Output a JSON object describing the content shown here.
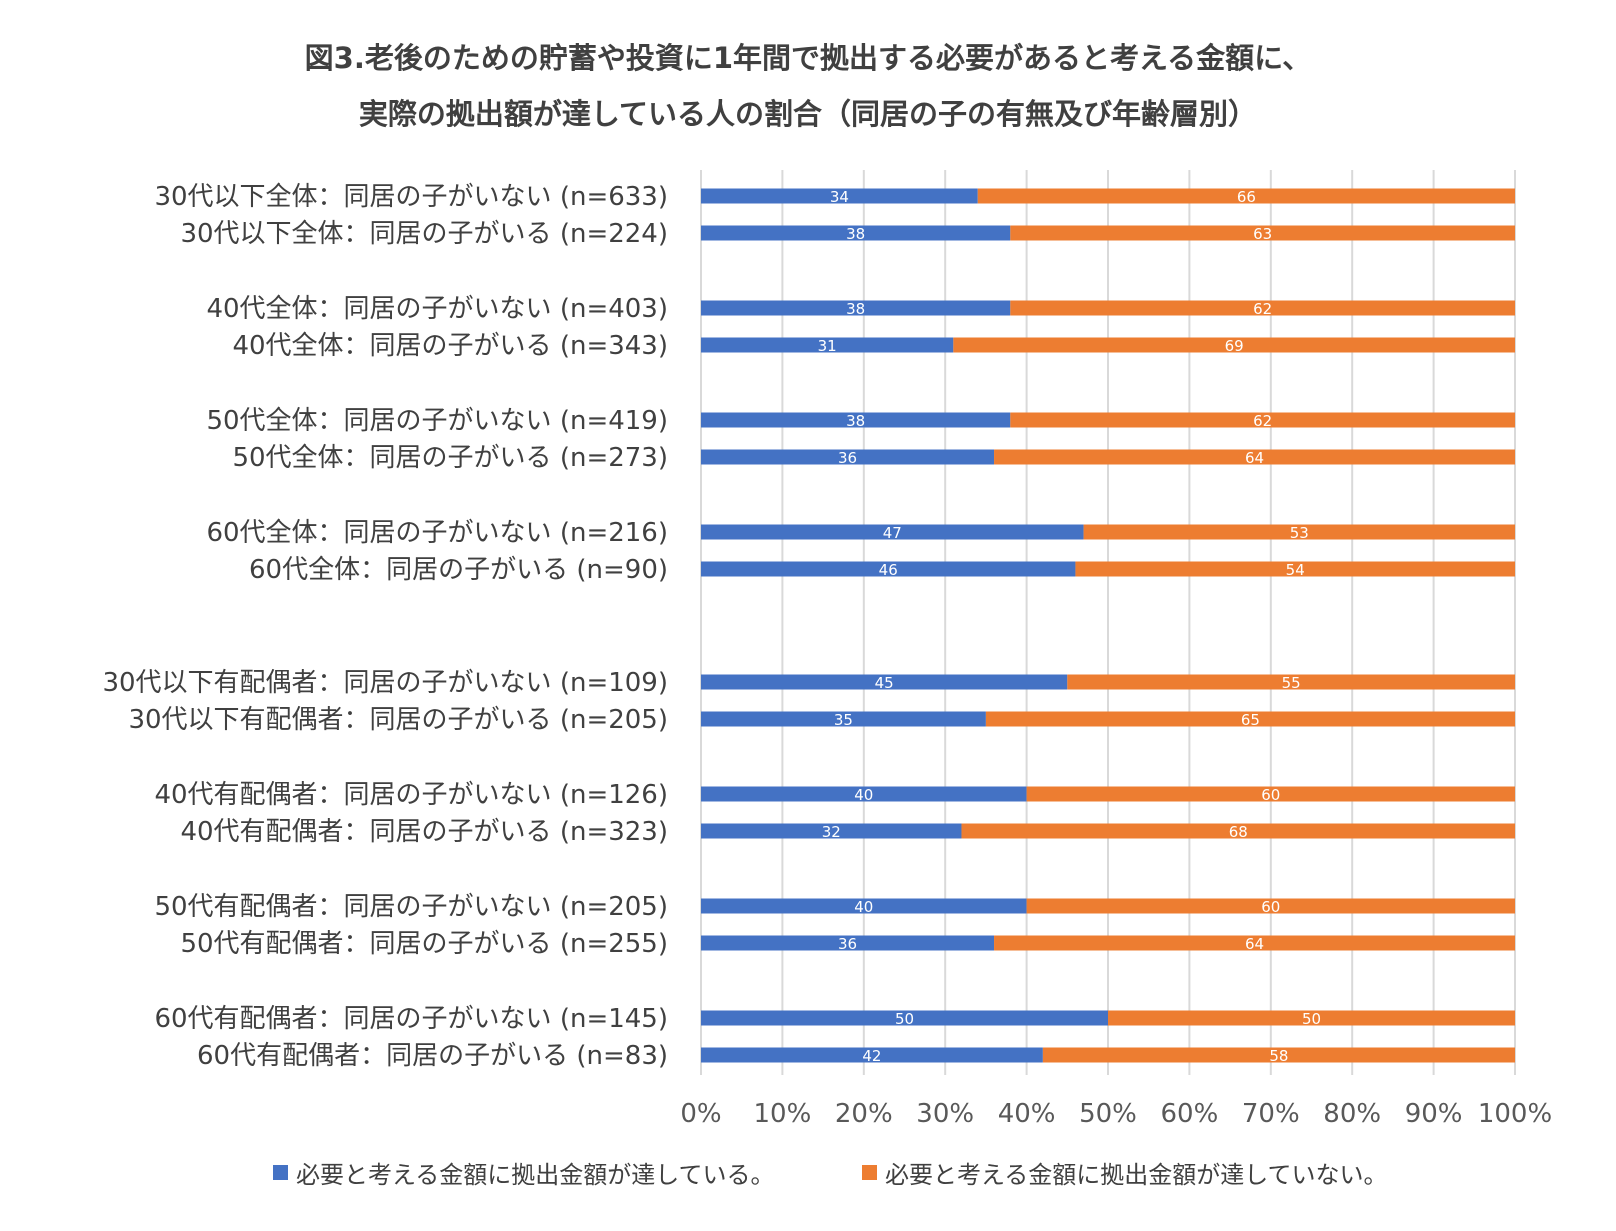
{
  "title_line1": "図3.老後のための貯蓄や投資に1年間で拠出する必要があると考える金額に、",
  "title_line2": "実際の拠出額が達している人の割合（同居の子の有無及び年齢層別）",
  "colors": {
    "reached": "#4472C4",
    "not_reached": "#ED7D31",
    "grid": "#D9D9D9"
  },
  "chart_data": {
    "type": "bar",
    "orientation": "horizontal",
    "stacked": "100%",
    "categories": [
      "30代以下全体：同居の子がいない (n=633)",
      "30代以下全体：同居の子がいる (n=224)",
      "40代全体：同居の子がいない (n=403)",
      "40代全体：同居の子がいる (n=343)",
      "50代全体：同居の子がいない (n=419)",
      "50代全体：同居の子がいる (n=273)",
      "60代全体：同居の子がいない (n=216)",
      "60代全体：同居の子がいる (n=90)",
      "30代以下有配偶者：同居の子がいない (n=109)",
      "30代以下有配偶者：同居の子がいる (n=205)",
      "40代有配偶者：同居の子がいない (n=126)",
      "40代有配偶者：同居の子がいる (n=323)",
      "50代有配偶者：同居の子がいない (n=205)",
      "50代有配偶者：同居の子がいる (n=255)",
      "60代有配偶者：同居の子がいない (n=145)",
      "60代有配偶者：同居の子がいる (n=83)"
    ],
    "series": [
      {
        "name": "必要と考える金額に拠出金額が達している。",
        "values": [
          34,
          38,
          38,
          31,
          38,
          36,
          47,
          46,
          45,
          35,
          40,
          32,
          40,
          36,
          50,
          42
        ]
      },
      {
        "name": "必要と考える金額に拠出金額が達していない。",
        "values": [
          66,
          63,
          62,
          69,
          62,
          64,
          53,
          54,
          55,
          65,
          60,
          68,
          60,
          64,
          50,
          58
        ]
      }
    ],
    "xlim": [
      0,
      100
    ],
    "x_ticks": [
      "0%",
      "10%",
      "20%",
      "30%",
      "40%",
      "50%",
      "60%",
      "70%",
      "80%",
      "90%",
      "100%"
    ],
    "grid": true,
    "legend_position": "bottom"
  }
}
